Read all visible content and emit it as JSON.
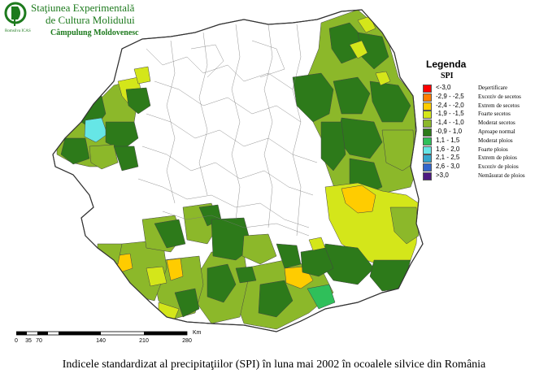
{
  "header": {
    "institution_line1": "Staţiunea Experimentală",
    "institution_line2": "de Cultura Molidului",
    "institution_line3": "Câmpulung Moldovenesc",
    "logo_text": "Romsilva ICAS"
  },
  "legend": {
    "title": "Legenda",
    "subtitle": "SPI",
    "items": [
      {
        "range": "<-3,0",
        "label": "Deşertificare",
        "color": "#ff0000"
      },
      {
        "range": "-2,9 - -2,5",
        "label": "Exceziv de secetos",
        "color": "#ff7f00"
      },
      {
        "range": "-2,4 - -2,0",
        "label": "Extrem de secetos",
        "color": "#ffcc00"
      },
      {
        "range": "-1,9 - -1,5",
        "label": "Foarte secetos",
        "color": "#d4e61a"
      },
      {
        "range": "-1,4 - -1,0",
        "label": "Moderat secetos",
        "color": "#8cb82a"
      },
      {
        "range": "-0,9 - 1,0",
        "label": "Aproape normal",
        "color": "#2d7a1a"
      },
      {
        "range": "1,1 - 1,5",
        "label": "Moderat ploios",
        "color": "#2fbf5a"
      },
      {
        "range": "1,6 - 2,0",
        "label": "Foarte ploios",
        "color": "#66e6e6"
      },
      {
        "range": "2,1 - 2,5",
        "label": "Extrem de ploios",
        "color": "#33a6cc"
      },
      {
        "range": "2,6 - 3,0",
        "label": "Exceziv de ploios",
        "color": "#3366cc"
      },
      {
        "range": ">3,0",
        "label": "Nemăsurat de ploios",
        "color": "#4d1a80"
      }
    ]
  },
  "scale": {
    "labels": [
      "0",
      "35",
      "70",
      "140",
      "210",
      "280"
    ],
    "unit": "Km"
  },
  "caption": "Indicele standardizat al precipitaţiilor (SPI) în luna mai 2002 în ocoalele silvice din România",
  "colors": {
    "no_data": "#ffffff",
    "boundary": "#555555",
    "institution_green": "#1d7a1d"
  }
}
